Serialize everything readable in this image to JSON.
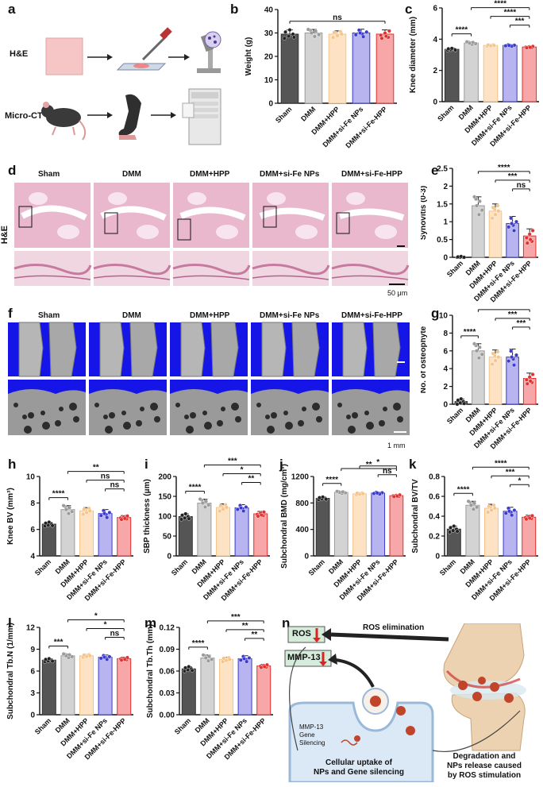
{
  "panel_labels": [
    "a",
    "b",
    "c",
    "d",
    "e",
    "f",
    "g",
    "h",
    "i",
    "j",
    "k",
    "l",
    "m",
    "n"
  ],
  "colors": {
    "Sham": "#555555",
    "DMM": "#d3d3d3",
    "DMM+HPP": "#fde2c4",
    "DMM+si-Fe NPs": "#b8b4f0",
    "DMM+si-Fe-HPP": "#f7a7a7",
    "Sham_pt": "#222222",
    "DMM_pt": "#9a9a9a",
    "DMM+HPP_pt": "#f5c48a",
    "DMM+si-Fe NPs_pt": "#3a3acc",
    "DMM+si-Fe-HPP_pt": "#e03030",
    "ct_bg": "#1515e8",
    "he_bg": "#e9b8cd"
  },
  "panel_a": {
    "row1": "H&E",
    "row2": "Micro-CT"
  },
  "panel_d": {
    "row_label": "H&E",
    "groups": [
      "Sham",
      "DMM",
      "DMM+HPP",
      "DMM+si-Fe NPs",
      "DMM+si-Fe-HPP"
    ],
    "scale": "50 μm"
  },
  "panel_f": {
    "groups": [
      "Sham",
      "DMM",
      "DMM+HPP",
      "DMM+si-Fe NPs",
      "DMM+si-Fe-HPP"
    ],
    "scale": "1 mm"
  },
  "panel_n": {
    "ros": "ROS",
    "mmp": "MMP-13",
    "ros_elim": "ROS elimination",
    "gene": "MMP-13\nGene\nSilencing",
    "uptake": "Cellular uptake of\nNPs and Gene silencing",
    "degradation": "Degradation and\nNPs release caused\nby ROS stimulation"
  },
  "chart_data": [
    {
      "id": "b",
      "type": "bar",
      "categories": [
        "Sham",
        "DMM",
        "DMM+HPP",
        "DMM+si-Fe NPs",
        "DMM+si-Fe-HPP"
      ],
      "values": [
        29.5,
        30,
        29.5,
        30,
        29.5
      ],
      "errors": [
        1.8,
        1.5,
        1.4,
        1.6,
        1.8
      ],
      "ylabel": "Weight (g)",
      "ylim": [
        0,
        40
      ],
      "ticks": [
        0,
        10,
        20,
        30,
        40
      ],
      "sig": [
        {
          "from": 0,
          "to": 4,
          "label": "ns"
        }
      ]
    },
    {
      "id": "c",
      "type": "bar",
      "categories": [
        "Sham",
        "DMM",
        "DMM+HPP",
        "DMM+si-Fe NPs",
        "DMM+si-Fe-HPP"
      ],
      "values": [
        3.35,
        3.75,
        3.6,
        3.6,
        3.5
      ],
      "errors": [
        0.06,
        0.08,
        0.05,
        0.05,
        0.05
      ],
      "ylabel": "Knee diameter (mm)",
      "ylim": [
        0,
        6
      ],
      "ticks": [
        0,
        2,
        4,
        6
      ],
      "sig": [
        {
          "from": 0,
          "to": 1,
          "label": "****"
        },
        {
          "from": 1,
          "to": 4,
          "label": "****"
        },
        {
          "from": 2,
          "to": 4,
          "label": "****"
        },
        {
          "from": 3,
          "to": 4,
          "label": "***"
        }
      ]
    },
    {
      "id": "e",
      "type": "bar",
      "categories": [
        "Sham",
        "DMM",
        "DMM+HPP",
        "DMM+si-Fe NPs",
        "DMM+si-Fe-HPP"
      ],
      "values": [
        0.0,
        1.45,
        1.3,
        0.95,
        0.6
      ],
      "errors": [
        0.0,
        0.25,
        0.2,
        0.2,
        0.2
      ],
      "ylabel": "Synovitis (0-3)",
      "ylim": [
        0,
        2.5
      ],
      "ticks": [
        0.0,
        0.5,
        1.0,
        1.5,
        2.0,
        2.5
      ],
      "sig": [
        {
          "from": 1,
          "to": 4,
          "label": "****"
        },
        {
          "from": 2,
          "to": 4,
          "label": "***"
        },
        {
          "from": 3,
          "to": 4,
          "label": "ns"
        }
      ]
    },
    {
      "id": "g",
      "type": "bar",
      "categories": [
        "Sham",
        "DMM",
        "DMM+HPP",
        "DMM+si-Fe NPs",
        "DMM+si-Fe-HPP"
      ],
      "values": [
        0.3,
        6.0,
        5.3,
        5.3,
        2.9
      ],
      "errors": [
        0.3,
        0.8,
        0.8,
        0.9,
        0.6
      ],
      "ylabel": "No. of osteophyte",
      "ylim": [
        0,
        10
      ],
      "ticks": [
        0,
        2,
        4,
        6,
        8,
        10
      ],
      "sig": [
        {
          "from": 0,
          "to": 1,
          "label": "****"
        },
        {
          "from": 1,
          "to": 4,
          "label": "****"
        },
        {
          "from": 2,
          "to": 4,
          "label": "***"
        },
        {
          "from": 3,
          "to": 4,
          "label": "***"
        }
      ]
    },
    {
      "id": "h",
      "type": "bar",
      "categories": [
        "Sham",
        "DMM",
        "DMM+HPP",
        "DMM+si-Fe NPs",
        "DMM+si-Fe-HPP"
      ],
      "values": [
        6.4,
        7.5,
        7.4,
        7.2,
        6.9
      ],
      "errors": [
        0.15,
        0.3,
        0.25,
        0.3,
        0.15
      ],
      "ylabel": "Knee BV (mm³)",
      "ylim": [
        4,
        10
      ],
      "ticks": [
        4,
        6,
        8,
        10
      ],
      "sig": [
        {
          "from": 0,
          "to": 1,
          "label": "****"
        },
        {
          "from": 1,
          "to": 4,
          "label": "**"
        },
        {
          "from": 2,
          "to": 4,
          "label": "ns"
        },
        {
          "from": 3,
          "to": 4,
          "label": "ns"
        }
      ]
    },
    {
      "id": "i",
      "type": "bar",
      "categories": [
        "Sham",
        "DMM",
        "DMM+HPP",
        "DMM+si-Fe NPs",
        "DMM+si-Fe-HPP"
      ],
      "values": [
        99,
        133,
        122,
        121,
        106
      ],
      "errors": [
        7,
        10,
        9,
        8,
        6
      ],
      "ylabel": "SBP thickness (μm)",
      "ylim": [
        0,
        200
      ],
      "ticks": [
        0,
        50,
        100,
        150,
        200
      ],
      "sig": [
        {
          "from": 0,
          "to": 1,
          "label": "****"
        },
        {
          "from": 1,
          "to": 4,
          "label": "***"
        },
        {
          "from": 2,
          "to": 4,
          "label": "*"
        },
        {
          "from": 3,
          "to": 4,
          "label": "**"
        }
      ]
    },
    {
      "id": "j",
      "type": "bar",
      "categories": [
        "Sham",
        "DMM",
        "DMM+HPP",
        "DMM+si-Fe NPs",
        "DMM+si-Fe-HPP"
      ],
      "values": [
        870,
        960,
        940,
        950,
        910
      ],
      "errors": [
        20,
        15,
        15,
        15,
        15
      ],
      "ylabel": "Subchondral BMD (mg/cm³)",
      "ylim": [
        0,
        1200
      ],
      "ticks": [
        0,
        400,
        800,
        1200
      ],
      "sig": [
        {
          "from": 0,
          "to": 1,
          "label": "****"
        },
        {
          "from": 1,
          "to": 4,
          "label": "**"
        },
        {
          "from": 2,
          "to": 4,
          "label": "*"
        },
        {
          "from": 3,
          "to": 4,
          "label": "ns"
        }
      ]
    },
    {
      "id": "k",
      "type": "bar",
      "categories": [
        "Sham",
        "DMM",
        "DMM+HPP",
        "DMM+si-Fe NPs",
        "DMM+si-Fe-HPP"
      ],
      "values": [
        0.27,
        0.51,
        0.48,
        0.45,
        0.39
      ],
      "errors": [
        0.03,
        0.04,
        0.04,
        0.04,
        0.02
      ],
      "ylabel": "Subchondral BV/TV",
      "ylim": [
        0,
        0.8
      ],
      "ticks": [
        0.0,
        0.2,
        0.4,
        0.6,
        0.8
      ],
      "sig": [
        {
          "from": 0,
          "to": 1,
          "label": "****"
        },
        {
          "from": 1,
          "to": 4,
          "label": "****"
        },
        {
          "from": 2,
          "to": 4,
          "label": "***"
        },
        {
          "from": 3,
          "to": 4,
          "label": "*"
        }
      ]
    },
    {
      "id": "l",
      "type": "bar",
      "categories": [
        "Sham",
        "DMM",
        "DMM+HPP",
        "DMM+si-Fe NPs",
        "DMM+si-Fe-HPP"
      ],
      "values": [
        7.5,
        8.1,
        8.1,
        7.9,
        7.7
      ],
      "errors": [
        0.2,
        0.25,
        0.2,
        0.3,
        0.2
      ],
      "ylabel": "Subchondral Tb.N (1/mm)",
      "ylim": [
        0,
        12
      ],
      "ticks": [
        0,
        3,
        6,
        9,
        12
      ],
      "sig": [
        {
          "from": 0,
          "to": 1,
          "label": "***"
        },
        {
          "from": 1,
          "to": 4,
          "label": "*"
        },
        {
          "from": 2,
          "to": 4,
          "label": "*"
        },
        {
          "from": 3,
          "to": 4,
          "label": "ns"
        }
      ]
    },
    {
      "id": "m",
      "type": "bar",
      "categories": [
        "Sham",
        "DMM",
        "DMM+HPP",
        "DMM+si-Fe NPs",
        "DMM+si-Fe-HPP"
      ],
      "values": [
        0.063,
        0.078,
        0.076,
        0.077,
        0.067
      ],
      "errors": [
        0.003,
        0.004,
        0.003,
        0.004,
        0.002
      ],
      "ylabel": "Subchondral Tb.Th (mm)",
      "ylim": [
        0,
        0.12
      ],
      "ticks": [
        0.0,
        0.03,
        0.06,
        0.09,
        0.12
      ],
      "tickfmt": [
        "0.00",
        "0.03",
        "0.06",
        "0.09",
        "0.12"
      ],
      "sig": [
        {
          "from": 0,
          "to": 1,
          "label": "****"
        },
        {
          "from": 1,
          "to": 4,
          "label": "***"
        },
        {
          "from": 2,
          "to": 4,
          "label": "**"
        },
        {
          "from": 3,
          "to": 4,
          "label": "**"
        }
      ]
    }
  ]
}
